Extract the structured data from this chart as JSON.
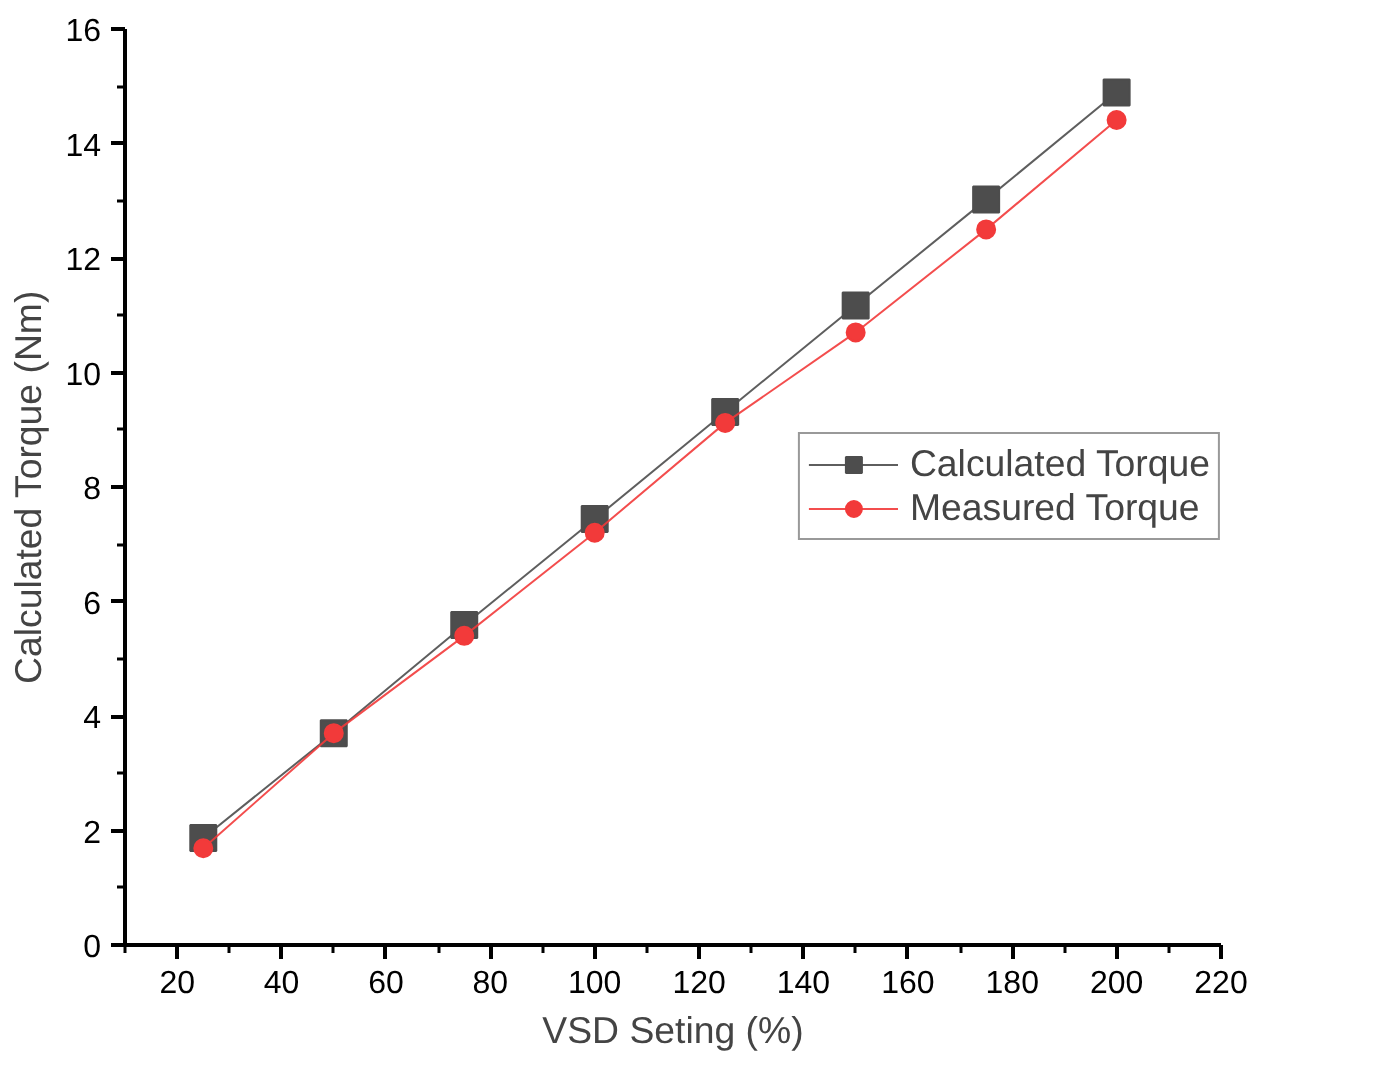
{
  "chart_data": {
    "type": "line",
    "xlabel": "VSD Seting (%)",
    "ylabel": "Calculated Torque (Nm)",
    "x": [
      25,
      50,
      75,
      100,
      125,
      150,
      175,
      200
    ],
    "series": [
      {
        "name": "Calculated Torque",
        "color": "#4d4d4d",
        "marker": "square",
        "values": [
          1.87,
          3.7,
          5.59,
          7.44,
          9.31,
          11.17,
          13.02,
          14.89
        ]
      },
      {
        "name": "Measured Torque",
        "color": "#f23a3a",
        "marker": "circle",
        "values": [
          1.69,
          3.7,
          5.4,
          7.2,
          9.12,
          10.7,
          12.5,
          14.41
        ]
      }
    ],
    "xlim": [
      10,
      220
    ],
    "xticks": [
      20,
      40,
      60,
      80,
      100,
      120,
      140,
      160,
      180,
      200,
      220
    ],
    "ylim": [
      0,
      16
    ],
    "yticks": [
      0,
      2,
      4,
      6,
      8,
      10,
      12,
      14,
      16
    ],
    "grid": false,
    "legend": "right",
    "line_style": "solid"
  }
}
